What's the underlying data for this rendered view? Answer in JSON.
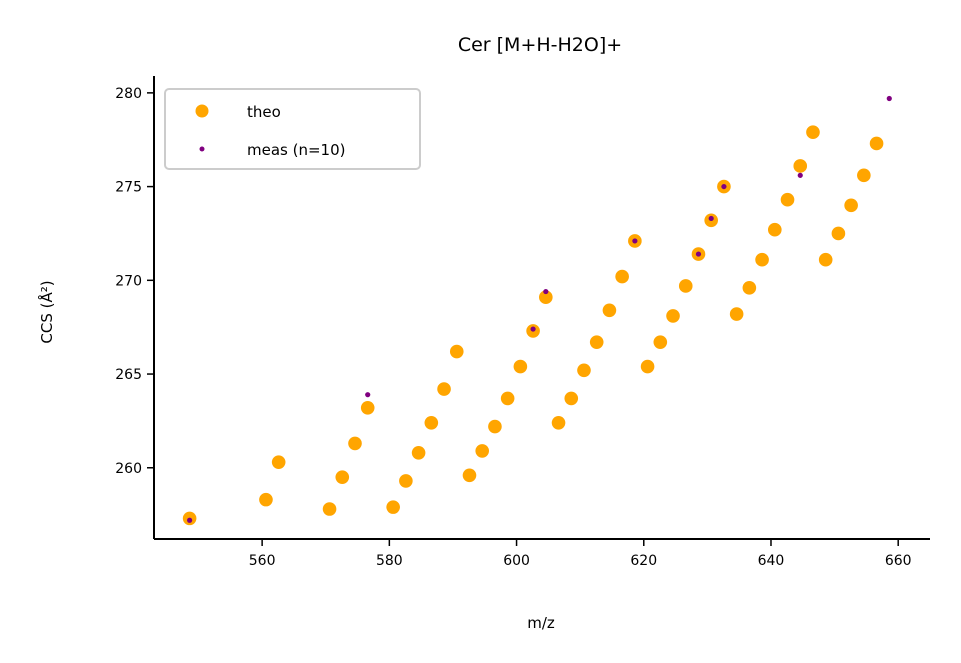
{
  "chart_data": {
    "type": "scatter",
    "title": "Cer [M+H-H2O]+",
    "xlabel": "m/z",
    "ylabel": "CCS (Å²)",
    "xlim": [
      543,
      665
    ],
    "ylim": [
      256.2,
      280.9
    ],
    "xticks": [
      560,
      580,
      600,
      620,
      640,
      660
    ],
    "yticks": [
      260,
      265,
      270,
      275,
      280
    ],
    "grid": false,
    "legend_position": "top-left",
    "series": [
      {
        "name": "theo",
        "color": "#FFA500",
        "points": [
          [
            548.6,
            257.3
          ],
          [
            560.6,
            258.3
          ],
          [
            562.6,
            260.3
          ],
          [
            570.6,
            257.8
          ],
          [
            572.6,
            259.5
          ],
          [
            574.6,
            261.3
          ],
          [
            576.6,
            263.2
          ],
          [
            580.6,
            257.9
          ],
          [
            582.6,
            259.3
          ],
          [
            584.6,
            260.8
          ],
          [
            586.6,
            262.4
          ],
          [
            588.6,
            264.2
          ],
          [
            590.6,
            266.2
          ],
          [
            592.6,
            259.6
          ],
          [
            594.6,
            260.9
          ],
          [
            596.6,
            262.2
          ],
          [
            598.6,
            263.7
          ],
          [
            600.6,
            265.4
          ],
          [
            602.6,
            267.3
          ],
          [
            604.6,
            269.1
          ],
          [
            606.6,
            262.4
          ],
          [
            608.6,
            263.7
          ],
          [
            610.6,
            265.2
          ],
          [
            612.6,
            266.7
          ],
          [
            614.6,
            268.4
          ],
          [
            616.6,
            270.2
          ],
          [
            618.6,
            272.1
          ],
          [
            620.6,
            265.4
          ],
          [
            622.6,
            266.7
          ],
          [
            624.6,
            268.1
          ],
          [
            626.6,
            269.7
          ],
          [
            628.6,
            271.4
          ],
          [
            630.6,
            273.2
          ],
          [
            632.6,
            275.0
          ],
          [
            634.6,
            268.2
          ],
          [
            636.6,
            269.6
          ],
          [
            638.6,
            271.1
          ],
          [
            640.6,
            272.7
          ],
          [
            642.6,
            274.3
          ],
          [
            644.6,
            276.1
          ],
          [
            646.6,
            277.9
          ],
          [
            648.6,
            271.1
          ],
          [
            650.6,
            272.5
          ],
          [
            652.6,
            274.0
          ],
          [
            654.6,
            275.6
          ],
          [
            656.6,
            277.3
          ]
        ]
      },
      {
        "name": "meas (n=10)",
        "color": "#800080",
        "points": [
          [
            548.6,
            257.2
          ],
          [
            576.6,
            263.9
          ],
          [
            602.6,
            267.4
          ],
          [
            604.6,
            269.4
          ],
          [
            618.6,
            272.1
          ],
          [
            628.6,
            271.4
          ],
          [
            630.6,
            273.3
          ],
          [
            632.6,
            275.0
          ],
          [
            644.6,
            275.6
          ],
          [
            658.6,
            279.7
          ]
        ]
      }
    ]
  }
}
